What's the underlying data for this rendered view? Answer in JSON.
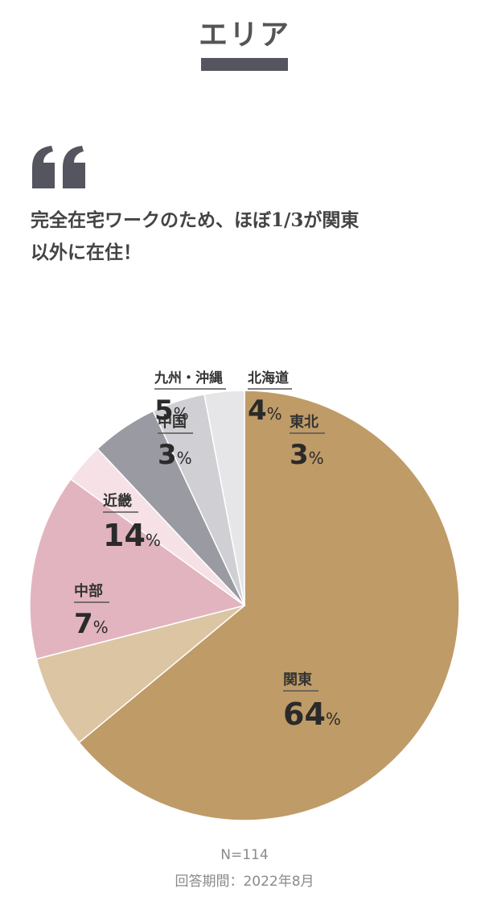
{
  "section": {
    "title": "エリア"
  },
  "quote": {
    "icon": "quote-icon",
    "line1": "完全在宅ワークのため、ほぼ1/3が関東",
    "line2": "以外に在住！"
  },
  "chart_data": {
    "type": "pie",
    "unit": "%",
    "slices": [
      {
        "label": "関東",
        "value": 64,
        "color": "#bf9b67"
      },
      {
        "label": "中部",
        "value": 7,
        "color": "#dcc5a3"
      },
      {
        "label": "近畿",
        "value": 14,
        "color": "#e2b4bf"
      },
      {
        "label": "中国",
        "value": 3,
        "color": "#f5e1e6"
      },
      {
        "label": "九州・沖縄",
        "value": 5,
        "color": "#9a9aa2"
      },
      {
        "label": "北海道",
        "value": 4,
        "color": "#cfcfd4"
      },
      {
        "label": "東北",
        "value": 3,
        "color": "#e6e6e8"
      }
    ]
  },
  "footer": {
    "sample": "N=114",
    "period": "回答期間：2022年8月"
  }
}
